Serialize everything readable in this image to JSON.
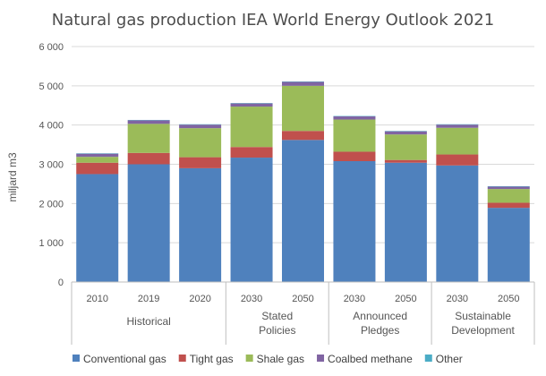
{
  "chart_data": {
    "type": "bar",
    "stacked": true,
    "title": "Natural gas production IEA World Energy Outlook 2021",
    "xlabel": "",
    "ylabel": "miljard m3",
    "ylim": [
      0,
      6000
    ],
    "yticks": [
      "0",
      "1 000",
      "2 000",
      "3 000",
      "4 000",
      "5 000",
      "6 000"
    ],
    "ytick_values": [
      0,
      1000,
      2000,
      3000,
      4000,
      5000,
      6000
    ],
    "grid": true,
    "legend_position": "bottom",
    "categories": [
      "2010",
      "2019",
      "2020",
      "2030",
      "2050",
      "2030",
      "2050",
      "2030",
      "2050"
    ],
    "groups": [
      {
        "label_lines": [
          "Historical"
        ],
        "count": 3
      },
      {
        "label_lines": [
          "Stated",
          "Policies"
        ],
        "count": 2
      },
      {
        "label_lines": [
          "Announced",
          "Pledges"
        ],
        "count": 2
      },
      {
        "label_lines": [
          "Sustainable",
          "Development"
        ],
        "count": 2
      }
    ],
    "series": [
      {
        "name": "Conventional gas",
        "color": "#4f81bd",
        "values": [
          2750,
          3000,
          2900,
          3170,
          3620,
          3080,
          3040,
          2970,
          1890
        ]
      },
      {
        "name": "Tight gas",
        "color": "#c0504d",
        "values": [
          290,
          290,
          280,
          270,
          230,
          240,
          70,
          280,
          130
        ]
      },
      {
        "name": "Shale gas",
        "color": "#9bbb59",
        "values": [
          150,
          740,
          740,
          1030,
          1150,
          820,
          650,
          680,
          350
        ]
      },
      {
        "name": "Coalbed methane",
        "color": "#8064a2",
        "values": [
          80,
          90,
          90,
          80,
          100,
          80,
          80,
          80,
          60
        ]
      },
      {
        "name": "Other",
        "color": "#4bacc6",
        "values": [
          10,
          10,
          10,
          10,
          10,
          10,
          10,
          10,
          10
        ]
      }
    ]
  }
}
